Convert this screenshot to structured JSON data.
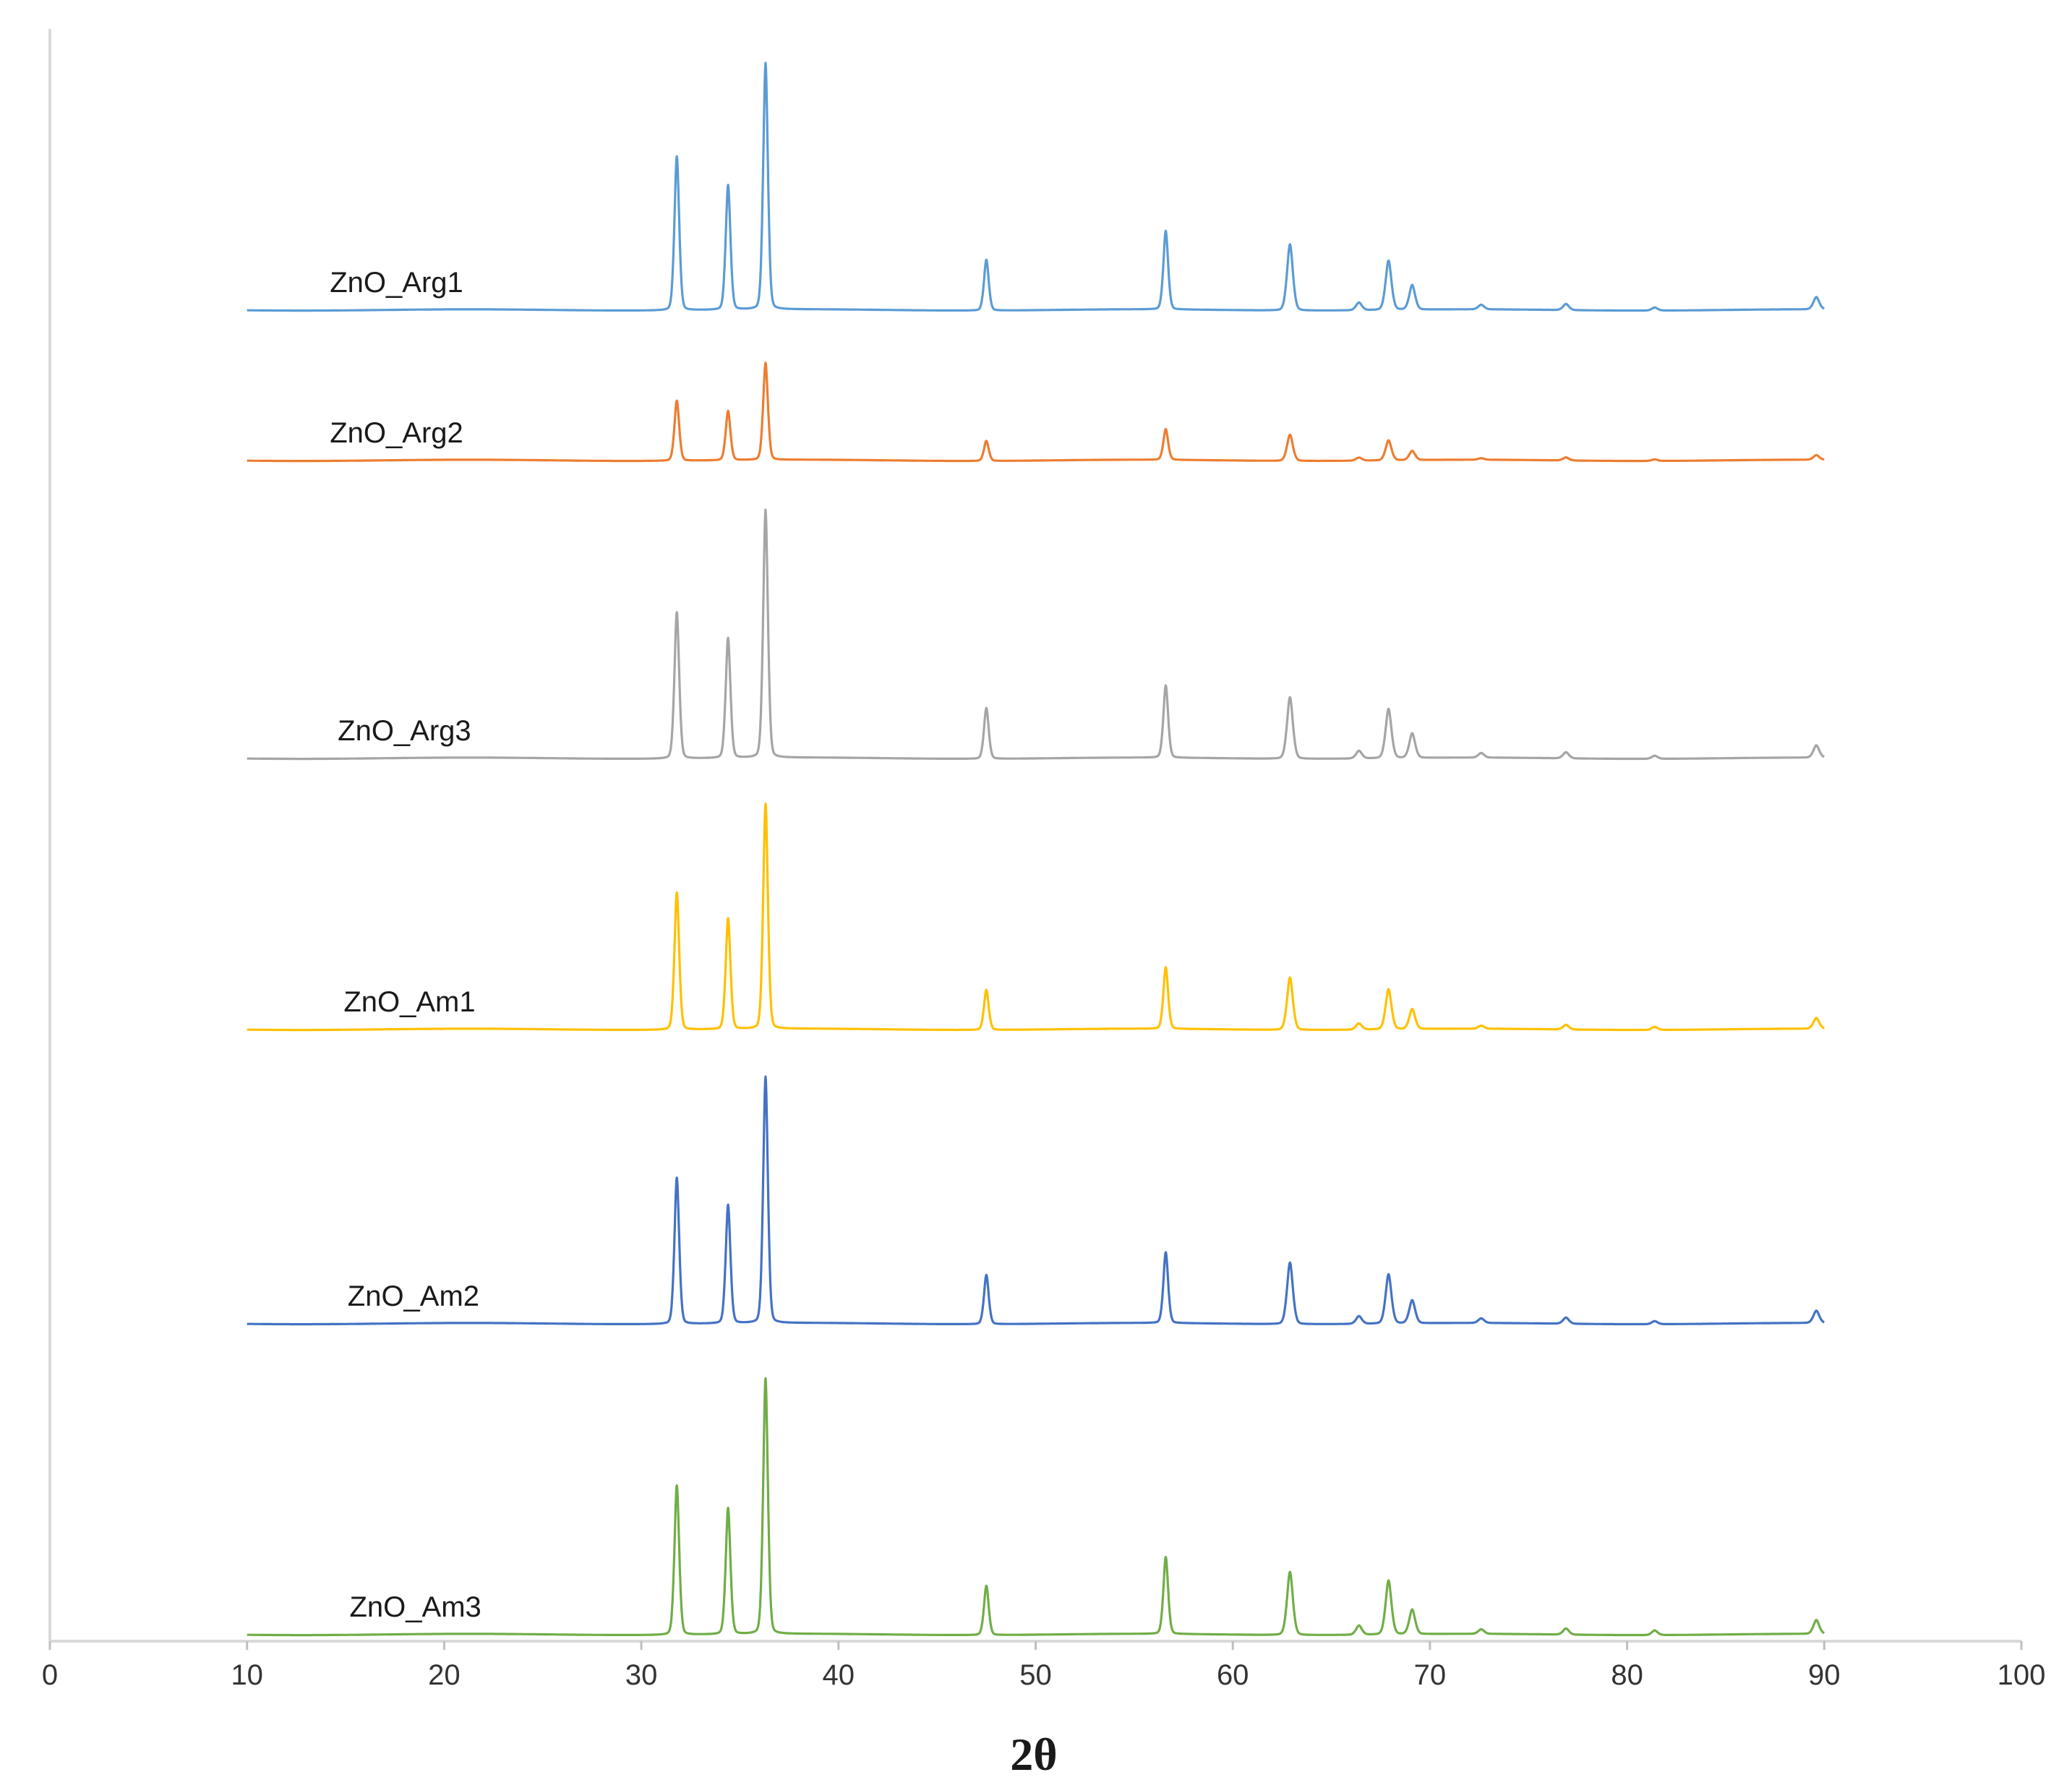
{
  "chart_data": {
    "type": "line",
    "title": "",
    "xlabel": "2θ",
    "ylabel": "",
    "xlim": [
      0,
      100
    ],
    "x_ticks": [
      0,
      10,
      20,
      30,
      40,
      50,
      60,
      70,
      80,
      90,
      100
    ],
    "x_tick_labels": [
      "0",
      "10",
      "20",
      "30",
      "40",
      "50",
      "60",
      "70",
      "80",
      "90",
      "100"
    ],
    "y_axis_visible": true,
    "y_tick_labels": [],
    "grid": false,
    "legend": "none",
    "x_range_measured": [
      10,
      90
    ],
    "series": [
      {
        "name": "ZnO_Arg1",
        "color": "#5b9bd5",
        "label_x_position": 14.2,
        "peaks": [
          {
            "two_theta": 31.8,
            "intensity": 1.0
          },
          {
            "two_theta": 34.4,
            "intensity": 0.81
          },
          {
            "two_theta": 36.3,
            "intensity": 1.6
          },
          {
            "two_theta": 47.5,
            "intensity": 0.33
          },
          {
            "two_theta": 56.6,
            "intensity": 0.51
          },
          {
            "two_theta": 62.9,
            "intensity": 0.43
          },
          {
            "two_theta": 66.4,
            "intensity": 0.05
          },
          {
            "two_theta": 67.9,
            "intensity": 0.32
          },
          {
            "two_theta": 69.1,
            "intensity": 0.16
          },
          {
            "two_theta": 72.6,
            "intensity": 0.03
          },
          {
            "two_theta": 76.9,
            "intensity": 0.04
          },
          {
            "two_theta": 81.4,
            "intensity": 0.02
          },
          {
            "two_theta": 89.6,
            "intensity": 0.08
          }
        ]
      },
      {
        "name": "ZnO_Arg2",
        "color": "#ed7d31",
        "label_x_position": 14.2,
        "peaks": [
          {
            "two_theta": 31.8,
            "intensity": 0.39
          },
          {
            "two_theta": 34.4,
            "intensity": 0.32
          },
          {
            "two_theta": 36.3,
            "intensity": 0.63
          },
          {
            "two_theta": 47.5,
            "intensity": 0.13
          },
          {
            "two_theta": 56.6,
            "intensity": 0.2
          },
          {
            "two_theta": 62.9,
            "intensity": 0.17
          },
          {
            "two_theta": 66.4,
            "intensity": 0.02
          },
          {
            "two_theta": 67.9,
            "intensity": 0.13
          },
          {
            "two_theta": 69.1,
            "intensity": 0.06
          },
          {
            "two_theta": 72.6,
            "intensity": 0.01
          },
          {
            "two_theta": 76.9,
            "intensity": 0.02
          },
          {
            "two_theta": 81.4,
            "intensity": 0.01
          },
          {
            "two_theta": 89.6,
            "intensity": 0.03
          }
        ]
      },
      {
        "name": "ZnO_Arg3",
        "color": "#a5a5a5",
        "label_x_position": 14.6,
        "peaks": [
          {
            "two_theta": 31.8,
            "intensity": 0.95
          },
          {
            "two_theta": 34.4,
            "intensity": 0.78
          },
          {
            "two_theta": 36.3,
            "intensity": 1.61
          },
          {
            "two_theta": 47.5,
            "intensity": 0.33
          },
          {
            "two_theta": 56.6,
            "intensity": 0.47
          },
          {
            "two_theta": 62.9,
            "intensity": 0.4
          },
          {
            "two_theta": 66.4,
            "intensity": 0.05
          },
          {
            "two_theta": 67.9,
            "intensity": 0.32
          },
          {
            "two_theta": 69.1,
            "intensity": 0.16
          },
          {
            "two_theta": 72.6,
            "intensity": 0.03
          },
          {
            "two_theta": 76.9,
            "intensity": 0.04
          },
          {
            "two_theta": 81.4,
            "intensity": 0.02
          },
          {
            "two_theta": 89.6,
            "intensity": 0.08
          }
        ]
      },
      {
        "name": "ZnO_Am1",
        "color": "#ffc000",
        "label_x_position": 14.9,
        "peaks": [
          {
            "two_theta": 31.8,
            "intensity": 0.89
          },
          {
            "two_theta": 34.4,
            "intensity": 0.72
          },
          {
            "two_theta": 36.3,
            "intensity": 1.46
          },
          {
            "two_theta": 47.5,
            "intensity": 0.26
          },
          {
            "two_theta": 56.6,
            "intensity": 0.4
          },
          {
            "two_theta": 62.9,
            "intensity": 0.34
          },
          {
            "two_theta": 66.4,
            "intensity": 0.04
          },
          {
            "two_theta": 67.9,
            "intensity": 0.26
          },
          {
            "two_theta": 69.1,
            "intensity": 0.13
          },
          {
            "two_theta": 72.6,
            "intensity": 0.02
          },
          {
            "two_theta": 76.9,
            "intensity": 0.03
          },
          {
            "two_theta": 81.4,
            "intensity": 0.02
          },
          {
            "two_theta": 89.6,
            "intensity": 0.07
          }
        ]
      },
      {
        "name": "ZnO_Am2",
        "color": "#4472c4",
        "label_x_position": 15.1,
        "peaks": [
          {
            "two_theta": 31.8,
            "intensity": 0.95
          },
          {
            "two_theta": 34.4,
            "intensity": 0.77
          },
          {
            "two_theta": 36.3,
            "intensity": 1.6
          },
          {
            "two_theta": 47.5,
            "intensity": 0.32
          },
          {
            "two_theta": 56.6,
            "intensity": 0.46
          },
          {
            "two_theta": 62.9,
            "intensity": 0.4
          },
          {
            "two_theta": 66.4,
            "intensity": 0.05
          },
          {
            "two_theta": 67.9,
            "intensity": 0.32
          },
          {
            "two_theta": 69.1,
            "intensity": 0.15
          },
          {
            "two_theta": 72.6,
            "intensity": 0.03
          },
          {
            "two_theta": 76.9,
            "intensity": 0.04
          },
          {
            "two_theta": 81.4,
            "intensity": 0.02
          },
          {
            "two_theta": 89.6,
            "intensity": 0.08
          }
        ]
      },
      {
        "name": "ZnO_Am3",
        "color": "#70ad47",
        "label_x_position": 15.2,
        "peaks": [
          {
            "two_theta": 31.8,
            "intensity": 0.97
          },
          {
            "two_theta": 34.4,
            "intensity": 0.82
          },
          {
            "two_theta": 36.3,
            "intensity": 1.66
          },
          {
            "two_theta": 47.5,
            "intensity": 0.32
          },
          {
            "two_theta": 56.6,
            "intensity": 0.5
          },
          {
            "two_theta": 62.9,
            "intensity": 0.41
          },
          {
            "two_theta": 66.4,
            "intensity": 0.06
          },
          {
            "two_theta": 67.9,
            "intensity": 0.35
          },
          {
            "two_theta": 69.1,
            "intensity": 0.16
          },
          {
            "two_theta": 72.6,
            "intensity": 0.03
          },
          {
            "two_theta": 76.9,
            "intensity": 0.04
          },
          {
            "two_theta": 81.4,
            "intensity": 0.03
          },
          {
            "two_theta": 89.6,
            "intensity": 0.09
          }
        ]
      }
    ]
  }
}
